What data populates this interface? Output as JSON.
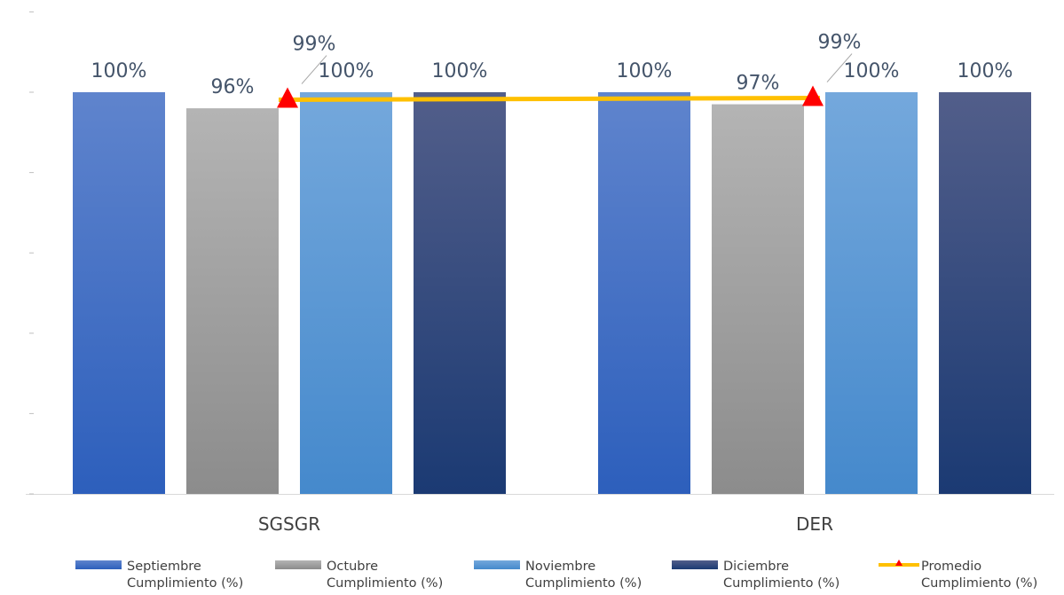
{
  "chart_data": {
    "type": "bar",
    "title": "",
    "xlabel": "",
    "ylabel": "",
    "ylim": [
      0,
      1.0
    ],
    "y_tick_labels_visible": false,
    "grid": false,
    "legend_position": "bottom",
    "categories": [
      "SGSGR",
      "DER"
    ],
    "series": [
      {
        "name_lines": [
          "Septiembre",
          "Cumplimiento (%)"
        ],
        "type": "bar",
        "values": [
          1.0,
          1.0
        ],
        "labels": [
          "100%",
          "100%"
        ],
        "color_top": "#5f84cd",
        "color_bottom": "#2d5fbc"
      },
      {
        "name_lines": [
          "Octubre",
          "Cumplimiento (%)"
        ],
        "type": "bar",
        "values": [
          0.96,
          0.97
        ],
        "labels": [
          "96%",
          "97%"
        ],
        "color_top": "#b4b4b4",
        "color_bottom": "#8c8c8c"
      },
      {
        "name_lines": [
          "Noviembre",
          "Cumplimiento (%)"
        ],
        "type": "bar",
        "values": [
          1.0,
          1.0
        ],
        "labels": [
          "100%",
          "100%"
        ],
        "color_top": "#74a8dc",
        "color_bottom": "#4589cc"
      },
      {
        "name_lines": [
          "Diciembre",
          "Cumplimiento (%)"
        ],
        "type": "bar",
        "values": [
          1.0,
          1.0
        ],
        "labels": [
          "100%",
          "100%"
        ],
        "color_top": "#525e8a",
        "color_bottom": "#1b3a73"
      },
      {
        "name_lines": [
          "Promedio",
          "Cumplimiento (%)"
        ],
        "type": "line",
        "values": [
          0.99,
          0.99
        ],
        "labels": [
          "99%",
          "99%"
        ],
        "line_color": "#ffc000",
        "marker": "triangle",
        "marker_color": "#ff0000"
      }
    ]
  }
}
